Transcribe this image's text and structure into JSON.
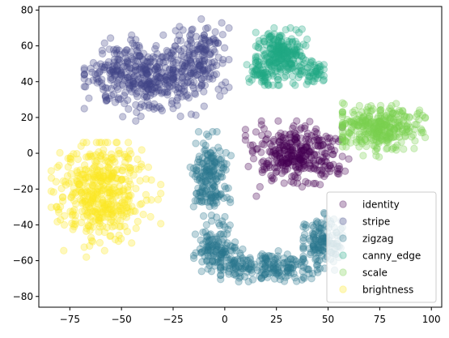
{
  "chart_data": {
    "type": "scatter",
    "title": "",
    "xlabel": "",
    "ylabel": "",
    "xlim": [
      -90,
      105
    ],
    "ylim": [
      -86,
      82
    ],
    "xticks": [
      -75,
      -50,
      -25,
      0,
      25,
      50,
      75,
      100
    ],
    "yticks": [
      -80,
      -60,
      -40,
      -20,
      0,
      20,
      40,
      60,
      80
    ],
    "grid": false,
    "legend_position": "lower-right",
    "series": [
      {
        "name": "identity",
        "color": "#440154",
        "clusters": [
          {
            "cx": 35,
            "cy": -2,
            "sx": 10,
            "sy": 8,
            "n": 320,
            "xmin": 10,
            "xmax": 60,
            "ymin": -24,
            "ymax": 18
          }
        ]
      },
      {
        "name": "stripe",
        "color": "#414487",
        "clusters": [
          {
            "cx": -40,
            "cy": 43,
            "sx": 14,
            "sy": 9,
            "n": 420,
            "xmin": -68,
            "xmax": -10,
            "ymin": 18,
            "ymax": 66
          },
          {
            "cx": -12,
            "cy": 53,
            "sx": 7,
            "sy": 10,
            "n": 160,
            "xmin": -25,
            "xmax": 2,
            "ymin": 25,
            "ymax": 75
          }
        ]
      },
      {
        "name": "zigzag",
        "color": "#2a788e",
        "clusters": [
          {
            "cx": -7,
            "cy": -12,
            "sx": 4,
            "sy": 12,
            "n": 190,
            "xmin": -17,
            "xmax": 3,
            "ymin": -45,
            "ymax": 12
          },
          {
            "cx": -5,
            "cy": -53,
            "sx": 5,
            "sy": 6,
            "n": 110,
            "xmin": -15,
            "xmax": 5,
            "ymin": -66,
            "ymax": -40
          },
          {
            "cx": 18,
            "cy": -63,
            "sx": 13,
            "sy": 4,
            "n": 200,
            "xmin": -2,
            "xmax": 45,
            "ymin": -76,
            "ymax": -52
          },
          {
            "cx": 47,
            "cy": -50,
            "sx": 5,
            "sy": 8,
            "n": 140,
            "xmin": 38,
            "xmax": 57,
            "ymin": -70,
            "ymax": -32
          }
        ]
      },
      {
        "name": "canny_edge",
        "color": "#22a884",
        "clusters": [
          {
            "cx": 28,
            "cy": 55,
            "sx": 6,
            "sy": 7,
            "n": 260,
            "xmin": 15,
            "xmax": 48,
            "ymin": 38,
            "ymax": 70
          },
          {
            "cx": 17,
            "cy": 45,
            "sx": 3,
            "sy": 3,
            "n": 50,
            "xmin": 10,
            "xmax": 25,
            "ymin": 38,
            "ymax": 52
          },
          {
            "cx": 43,
            "cy": 46,
            "sx": 3,
            "sy": 3,
            "n": 40,
            "xmin": 38,
            "xmax": 48,
            "ymin": 40,
            "ymax": 52
          }
        ]
      },
      {
        "name": "scale",
        "color": "#7ad151",
        "clusters": [
          {
            "cx": 75,
            "cy": 14,
            "sx": 10,
            "sy": 6,
            "n": 330,
            "xmin": 57,
            "xmax": 97,
            "ymin": -6,
            "ymax": 34
          }
        ]
      },
      {
        "name": "brightness",
        "color": "#fde725",
        "clusters": [
          {
            "cx": -60,
            "cy": -22,
            "sx": 11,
            "sy": 13,
            "n": 460,
            "xmin": -84,
            "xmax": -31,
            "ymin": -58,
            "ymax": 6
          }
        ]
      }
    ]
  }
}
